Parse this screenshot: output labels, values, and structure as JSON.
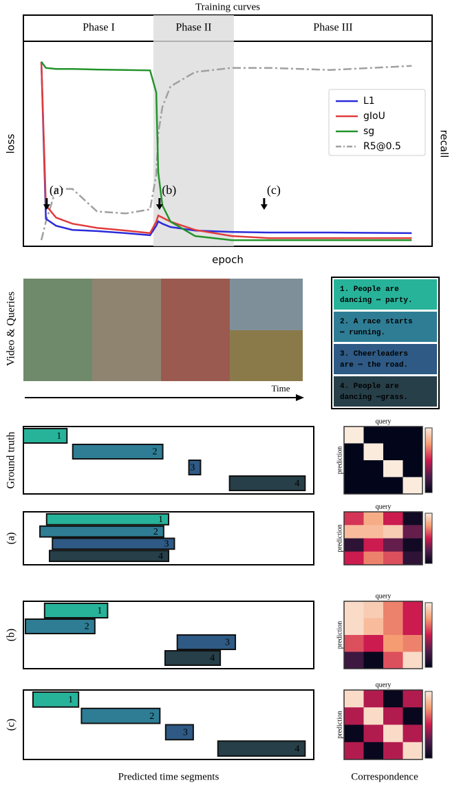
{
  "chart_data": {
    "type": "line",
    "title": "Training curves",
    "phases": [
      "Phase I",
      "Phase II",
      "Phase III"
    ],
    "shade": [
      31.8,
      51.5
    ],
    "xlabel": "epoch",
    "ylabel": "loss",
    "y2label": "recall",
    "xlim": [
      0,
      100
    ],
    "ylim": [
      0,
      1
    ],
    "y2lim": [
      0,
      1
    ],
    "legend": "center right",
    "x": [
      4.4,
      5.5,
      8,
      12,
      18,
      25,
      31,
      32.5,
      33,
      34,
      36,
      42,
      51,
      60,
      75,
      95
    ],
    "series": [
      {
        "name": "L1",
        "color": "#2b2bd9",
        "values": [
          0.9,
          0.134,
          0.1,
          0.08,
          0.074,
          0.064,
          0.054,
          0.1,
          0.121,
          0.11,
          0.094,
          0.077,
          0.07,
          0.067,
          0.067,
          0.064
        ]
      },
      {
        "name": "gIoU",
        "color": "#e03c3c",
        "values": [
          0.9,
          0.2,
          0.14,
          0.11,
          0.09,
          0.077,
          0.064,
          0.12,
          0.15,
          0.14,
          0.12,
          0.08,
          0.05,
          0.04,
          0.04,
          0.04
        ]
      },
      {
        "name": "sg",
        "color": "#23932b",
        "values": [
          0.9,
          0.87,
          0.865,
          0.865,
          0.862,
          0.86,
          0.858,
          0.75,
          0.36,
          0.2,
          0.12,
          0.05,
          0.03,
          0.03,
          0.03,
          0.03
        ]
      },
      {
        "name": "R5@0.5",
        "color": "#a0a0a0",
        "axis": "y2",
        "dash": true,
        "values": [
          0.03,
          0.12,
          0.28,
          0.28,
          0.17,
          0.16,
          0.18,
          0.35,
          0.55,
          0.68,
          0.78,
          0.85,
          0.87,
          0.87,
          0.86,
          0.88
        ]
      }
    ],
    "annotations": [
      {
        "text": "(a)",
        "x": 5.7
      },
      {
        "text": "(b)",
        "x": 33.3
      },
      {
        "text": "(c)",
        "x": 58.9
      }
    ]
  },
  "video": {
    "label": "Video & Queries",
    "time_label": "Time",
    "queries": [
      [
        "1. People are",
        "dancing ⋯ party."
      ],
      [
        "2. A race starts",
        "⋯ running."
      ],
      [
        "3. Cheerleaders",
        "are ⋯ the road."
      ],
      [
        "4. People are",
        "dancing ⋯grass."
      ]
    ],
    "colors": [
      "#27b39a",
      "#2e7d95",
      "#2e5a85",
      "#263f49"
    ]
  },
  "segments": {
    "xlabel": "Predicted time segments",
    "rows": [
      {
        "label": "Ground truth",
        "bars": [
          {
            "label": "1",
            "start": 0,
            "end": 0.15
          },
          {
            "label": "2",
            "start": 0.17,
            "end": 0.48
          },
          {
            "label": "3",
            "start": 0.57,
            "end": 0.61
          },
          {
            "label": "4",
            "start": 0.71,
            "end": 0.97
          }
        ]
      },
      {
        "label": "(a)",
        "bars": [
          {
            "label": "1",
            "start": 0.08,
            "end": 0.5
          },
          {
            "label": "2",
            "start": 0.057,
            "end": 0.483
          },
          {
            "label": "3",
            "start": 0.1,
            "end": 0.52
          },
          {
            "label": "4",
            "start": 0.09,
            "end": 0.5
          }
        ]
      },
      {
        "label": "(b)",
        "bars": [
          {
            "label": "1",
            "start": 0.073,
            "end": 0.29
          },
          {
            "label": "2",
            "start": 0.007,
            "end": 0.246
          },
          {
            "label": "3",
            "start": 0.53,
            "end": 0.73
          },
          {
            "label": "4",
            "start": 0.488,
            "end": 0.678
          }
        ]
      },
      {
        "label": "(c)",
        "bars": [
          {
            "label": "1",
            "start": 0.033,
            "end": 0.19
          },
          {
            "label": "2",
            "start": 0.2,
            "end": 0.47
          },
          {
            "label": "3",
            "start": 0.49,
            "end": 0.585
          },
          {
            "label": "4",
            "start": 0.67,
            "end": 0.97
          }
        ]
      }
    ]
  },
  "correspondence": {
    "xlabel": "Correspondence",
    "query_label": "query",
    "prediction_label": "prediction",
    "matrices": [
      [
        [
          1,
          0,
          0,
          0
        ],
        [
          0,
          1,
          0,
          0
        ],
        [
          0,
          0,
          1,
          0
        ],
        [
          0,
          0,
          0,
          1
        ]
      ],
      [
        [
          0.55,
          0.8,
          0.5,
          0.05
        ],
        [
          0.85,
          0.85,
          0.9,
          0.3
        ],
        [
          0.15,
          0.5,
          0.3,
          0.05
        ],
        [
          0.5,
          0.7,
          0.6,
          0.15
        ]
      ],
      [
        [
          0.95,
          0.9,
          0.7,
          0.5
        ],
        [
          0.95,
          0.85,
          0.7,
          0.5
        ],
        [
          0.6,
          0.5,
          0.75,
          0.7
        ],
        [
          0.2,
          0.02,
          0.6,
          0.95
        ]
      ],
      [
        [
          0.95,
          0.45,
          0.02,
          0.45
        ],
        [
          0.45,
          0.95,
          0.45,
          0.02
        ],
        [
          0.02,
          0.45,
          0.95,
          0.45
        ],
        [
          0.45,
          0.02,
          0.45,
          0.95
        ]
      ]
    ]
  }
}
